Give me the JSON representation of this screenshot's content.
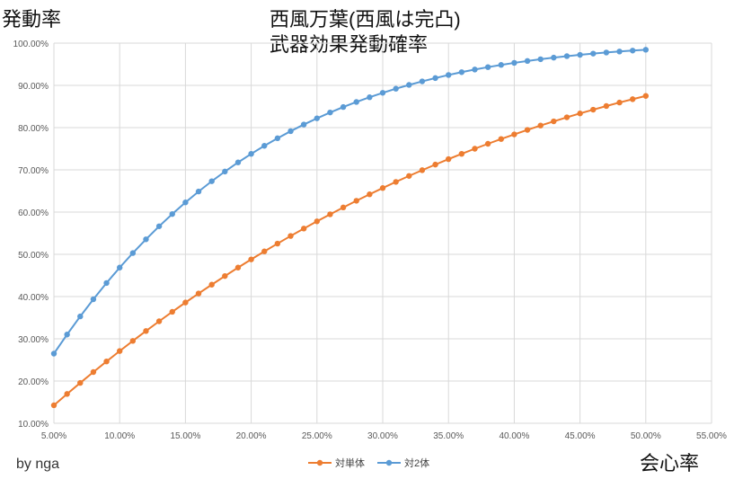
{
  "chart_data": {
    "type": "line",
    "title": "西風万葉(西風は完凸)",
    "subtitle": "武器効果発動確率",
    "xlabel": "会心率",
    "ylabel": "発動率",
    "xlim": [
      5,
      55
    ],
    "ylim": [
      10,
      100
    ],
    "x_ticks": [
      "5.00%",
      "10.00%",
      "15.00%",
      "20.00%",
      "25.00%",
      "30.00%",
      "35.00%",
      "40.00%",
      "45.00%",
      "50.00%",
      "55.00%"
    ],
    "y_ticks": [
      "10.00%",
      "20.00%",
      "30.00%",
      "40.00%",
      "50.00%",
      "60.00%",
      "70.00%",
      "80.00%",
      "90.00%",
      "100.00%"
    ],
    "grid": true,
    "legend_position": "bottom",
    "x": [
      5,
      6,
      7,
      8,
      9,
      10,
      11,
      12,
      13,
      14,
      15,
      16,
      17,
      18,
      19,
      20,
      21,
      22,
      23,
      24,
      25,
      26,
      27,
      28,
      29,
      30,
      31,
      32,
      33,
      34,
      35,
      36,
      37,
      38,
      39,
      40,
      41,
      42,
      43,
      44,
      45,
      46,
      47,
      48,
      49,
      50
    ],
    "series": [
      {
        "name": "対単体",
        "color": "#ED7D31",
        "values": [
          14.26,
          16.94,
          19.56,
          22.13,
          24.64,
          27.1,
          29.5,
          31.85,
          34.15,
          36.39,
          38.59,
          40.73,
          42.82,
          44.86,
          46.86,
          48.8,
          50.7,
          52.54,
          54.35,
          56.1,
          57.81,
          59.48,
          61.1,
          62.68,
          64.21,
          65.7,
          67.15,
          68.56,
          69.92,
          71.25,
          72.54,
          73.79,
          75.0,
          76.17,
          77.3,
          78.4,
          79.46,
          80.49,
          81.48,
          82.44,
          83.36,
          84.25,
          85.11,
          85.94,
          86.73,
          87.5
        ]
      },
      {
        "name": "対2体",
        "color": "#5B9BD5",
        "values": [
          26.49,
          31.01,
          35.3,
          39.36,
          43.21,
          46.86,
          50.3,
          53.56,
          56.64,
          59.54,
          62.29,
          64.87,
          67.31,
          69.6,
          71.76,
          73.79,
          75.69,
          77.48,
          79.16,
          80.73,
          82.2,
          83.58,
          84.87,
          86.07,
          87.19,
          88.24,
          89.21,
          90.11,
          90.95,
          91.73,
          92.46,
          93.13,
          93.75,
          94.32,
          94.85,
          95.33,
          95.78,
          96.19,
          96.57,
          96.92,
          97.23,
          97.52,
          97.78,
          98.02,
          98.24,
          98.44
        ]
      }
    ]
  },
  "credit": "by nga"
}
